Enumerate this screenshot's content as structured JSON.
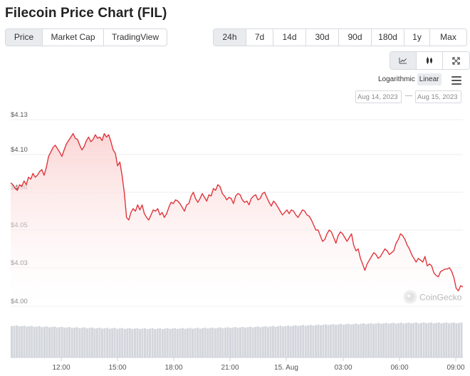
{
  "title": "Filecoin Price Chart (FIL)",
  "view_tabs": [
    {
      "label": "Price",
      "active": true
    },
    {
      "label": "Market Cap",
      "active": false
    },
    {
      "label": "TradingView",
      "active": false
    }
  ],
  "range_tabs": [
    {
      "label": "24h",
      "active": true
    },
    {
      "label": "7d",
      "active": false
    },
    {
      "label": "14d",
      "active": false
    },
    {
      "label": "30d",
      "active": false
    },
    {
      "label": "90d",
      "active": false
    },
    {
      "label": "180d",
      "active": false
    },
    {
      "label": "1y",
      "active": false
    },
    {
      "label": "Max",
      "active": false
    }
  ],
  "chart_type_icons": [
    "line-chart-icon",
    "candlestick-icon",
    "fullscreen-icon"
  ],
  "scale": {
    "log_label": "Logarithmic",
    "linear_label": "Linear",
    "active": "Linear"
  },
  "date_range": {
    "from": "Aug 14, 2023",
    "to": "Aug 15, 2023",
    "separator": "—"
  },
  "watermark": "CoinGecko",
  "colors": {
    "line": "#e0353b",
    "fill": "#fde3e3",
    "volume": "#d3d6dc",
    "active_tab": "#e9ebef"
  },
  "chart_data": {
    "type": "line",
    "title": "",
    "xlabel": "",
    "ylabel": "",
    "ylim": [
      4.0,
      4.13
    ],
    "y_ticks": [
      "$4.13",
      "$4.10",
      "$4.08",
      "$4.05",
      "$4.03",
      "$4.00"
    ],
    "x_ticks": [
      "12:00",
      "15:00",
      "18:00",
      "21:00",
      "15. Aug",
      "03:00",
      "06:00",
      "09:00"
    ],
    "grid": true,
    "series": [
      {
        "values": [
          4.085,
          4.084,
          4.082,
          4.081,
          4.084,
          4.083,
          4.086,
          4.084,
          4.088,
          4.087,
          4.09,
          4.088,
          4.089,
          4.091,
          4.092,
          4.089,
          4.093,
          4.099,
          4.102,
          4.106,
          4.108,
          4.105,
          4.102,
          4.099,
          4.104,
          4.109,
          4.112,
          4.115,
          4.118,
          4.114,
          4.113,
          4.108,
          4.104,
          4.107,
          4.112,
          4.115,
          4.111,
          4.113,
          4.117,
          4.114,
          4.115,
          4.112,
          4.118,
          4.115,
          4.117,
          4.111,
          4.104,
          4.101,
          4.094,
          4.096,
          4.089,
          4.08,
          4.06,
          4.058,
          4.064,
          4.067,
          4.065,
          4.07,
          4.066,
          4.07,
          4.063,
          4.06,
          4.058,
          4.062,
          4.066,
          4.065,
          4.067,
          4.062,
          4.064,
          4.06,
          4.063,
          4.068,
          4.072,
          4.071,
          4.074,
          4.073,
          4.071,
          4.068,
          4.065,
          4.07,
          4.071,
          4.077,
          4.08,
          4.075,
          4.072,
          4.075,
          4.079,
          4.076,
          4.073,
          4.078,
          4.077,
          4.082,
          4.081,
          4.084,
          4.083,
          4.079,
          4.077,
          4.074,
          4.076,
          4.075,
          4.071,
          4.077,
          4.079,
          4.078,
          4.074,
          4.072,
          4.073,
          4.07,
          4.075,
          4.077,
          4.078,
          4.074,
          4.075,
          4.079,
          4.08,
          4.076,
          4.072,
          4.069,
          4.073,
          4.071,
          4.068,
          4.065,
          4.062,
          4.064,
          4.066,
          4.063,
          4.066,
          4.065,
          4.062,
          4.06,
          4.063,
          4.066,
          4.065,
          4.062,
          4.061,
          4.058,
          4.054,
          4.05,
          4.05,
          4.047,
          4.044,
          4.045,
          4.048,
          4.05,
          4.049,
          4.046,
          4.043,
          4.047,
          4.049,
          4.048,
          4.046,
          4.044,
          4.046,
          4.048,
          4.042,
          4.039,
          4.04,
          4.035,
          4.032,
          4.028,
          4.032,
          4.034,
          4.036,
          4.038,
          4.037,
          4.035,
          4.036,
          4.038,
          4.04,
          4.039,
          4.037,
          4.038,
          4.039,
          4.043,
          4.045,
          4.048,
          4.047,
          4.045,
          4.042,
          4.04,
          4.037,
          4.035,
          4.033,
          4.035,
          4.034,
          4.033,
          4.036,
          4.031,
          4.032,
          4.031,
          4.026,
          4.024,
          4.023,
          4.027,
          4.028,
          4.029,
          4.029,
          4.03,
          4.027,
          4.022,
          4.014,
          4.012,
          4.016,
          4.015
        ]
      }
    ]
  }
}
